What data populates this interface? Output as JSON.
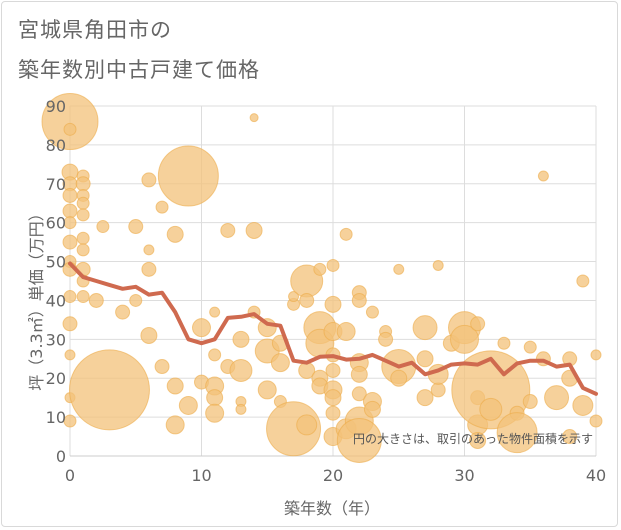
{
  "title_line1": "宮城県角田市の",
  "title_line2": "築年数別中古戸建て価格",
  "colors": {
    "bubble_fill": "#f3c27a",
    "bubble_stroke": "#ecac4a",
    "line": "#cf6a4f",
    "grid": "#dddddd",
    "text": "#666666"
  },
  "chart_data": {
    "type": "scatter",
    "xlabel": "築年数（年）",
    "ylabel": "坪（3.3㎡）単価（万円）",
    "xlim": [
      0,
      40
    ],
    "ylim": [
      0,
      90
    ],
    "x_ticks": [
      "0",
      "10",
      "20",
      "30",
      "40"
    ],
    "y_ticks": [
      "0",
      "10",
      "20",
      "30",
      "40",
      "50",
      "60",
      "70",
      "80",
      "90"
    ],
    "grid": true,
    "note": "円の大きさは、取引のあった物件面積を示す",
    "bubbles": [
      [
        0,
        86,
        28
      ],
      [
        0,
        84,
        6
      ],
      [
        0,
        73,
        8
      ],
      [
        0,
        70,
        7
      ],
      [
        0,
        67,
        7
      ],
      [
        0,
        63,
        7
      ],
      [
        0,
        60,
        6
      ],
      [
        0,
        55,
        7
      ],
      [
        0,
        50,
        6
      ],
      [
        0,
        48,
        7
      ],
      [
        0,
        41,
        6
      ],
      [
        0,
        34,
        7
      ],
      [
        0,
        9,
        6
      ],
      [
        0,
        15,
        5
      ],
      [
        0,
        26,
        5
      ],
      [
        1,
        72,
        6
      ],
      [
        1,
        70,
        7
      ],
      [
        1,
        67,
        6
      ],
      [
        1,
        65,
        6
      ],
      [
        1,
        62,
        6
      ],
      [
        1,
        56,
        6
      ],
      [
        1,
        53,
        6
      ],
      [
        1,
        48,
        7
      ],
      [
        1,
        45,
        6
      ],
      [
        1,
        41,
        6
      ],
      [
        2,
        40,
        7
      ],
      [
        2.5,
        59,
        6
      ],
      [
        3,
        17,
        40
      ],
      [
        4,
        37,
        7
      ],
      [
        5,
        59,
        7
      ],
      [
        5,
        40,
        6
      ],
      [
        6,
        71,
        7
      ],
      [
        6,
        53,
        5
      ],
      [
        6,
        48,
        7
      ],
      [
        6,
        31,
        8
      ],
      [
        7,
        64,
        6
      ],
      [
        7,
        23,
        7
      ],
      [
        8,
        57,
        8
      ],
      [
        8,
        18,
        8
      ],
      [
        8,
        8,
        9
      ],
      [
        9,
        72,
        30
      ],
      [
        9,
        13,
        9
      ],
      [
        10,
        33,
        9
      ],
      [
        10,
        19,
        7
      ],
      [
        11,
        37,
        5
      ],
      [
        11,
        26,
        6
      ],
      [
        11,
        18,
        9
      ],
      [
        11,
        15,
        8
      ],
      [
        11,
        11,
        9
      ],
      [
        12,
        58,
        7
      ],
      [
        12,
        23,
        7
      ],
      [
        13,
        30,
        8
      ],
      [
        13,
        22,
        11
      ],
      [
        13,
        14,
        5
      ],
      [
        13,
        12,
        5
      ],
      [
        14,
        87,
        4
      ],
      [
        14,
        58,
        8
      ],
      [
        14,
        37,
        6
      ],
      [
        15,
        33,
        9
      ],
      [
        15,
        27,
        12
      ],
      [
        15,
        17,
        9
      ],
      [
        16,
        29,
        8
      ],
      [
        16,
        24,
        9
      ],
      [
        16,
        14,
        6
      ],
      [
        17,
        7,
        27
      ],
      [
        17,
        39,
        6
      ],
      [
        17,
        41,
        5
      ],
      [
        18,
        45,
        16
      ],
      [
        18,
        40,
        7
      ],
      [
        18,
        22,
        8
      ],
      [
        18,
        8,
        10
      ],
      [
        19,
        48,
        6
      ],
      [
        19,
        33,
        16
      ],
      [
        19,
        29,
        14
      ],
      [
        19,
        20,
        8
      ],
      [
        19,
        18,
        8
      ],
      [
        20,
        49,
        6
      ],
      [
        20,
        39,
        8
      ],
      [
        20,
        32,
        9
      ],
      [
        20,
        26,
        7
      ],
      [
        20,
        22,
        7
      ],
      [
        20,
        17,
        9
      ],
      [
        20,
        15,
        8
      ],
      [
        20,
        11,
        7
      ],
      [
        20,
        5,
        9
      ],
      [
        21,
        57,
        6
      ],
      [
        21,
        32,
        9
      ],
      [
        21,
        7,
        10
      ],
      [
        22,
        42,
        7
      ],
      [
        22,
        40,
        7
      ],
      [
        22,
        24,
        9
      ],
      [
        22,
        21,
        8
      ],
      [
        22,
        16,
        7
      ],
      [
        22,
        9,
        14
      ],
      [
        22,
        4,
        22
      ],
      [
        23,
        37,
        6
      ],
      [
        23,
        14,
        9
      ],
      [
        23,
        12,
        8
      ],
      [
        24,
        32,
        6
      ],
      [
        24,
        30,
        7
      ],
      [
        25,
        48,
        5
      ],
      [
        25,
        23,
        17
      ],
      [
        25,
        20,
        8
      ],
      [
        27,
        33,
        12
      ],
      [
        27,
        25,
        8
      ],
      [
        27,
        15,
        8
      ],
      [
        28,
        49,
        5
      ],
      [
        28,
        17,
        7
      ],
      [
        28,
        21,
        10
      ],
      [
        29,
        29,
        8
      ],
      [
        30,
        33,
        16
      ],
      [
        30,
        30,
        14
      ],
      [
        31,
        34,
        7
      ],
      [
        31,
        15,
        7
      ],
      [
        31,
        8,
        10
      ],
      [
        31,
        4,
        8
      ],
      [
        32,
        17,
        39
      ],
      [
        32,
        12,
        11
      ],
      [
        33,
        29,
        6
      ],
      [
        34,
        11,
        7
      ],
      [
        34,
        6,
        20
      ],
      [
        35,
        28,
        6
      ],
      [
        35,
        14,
        7
      ],
      [
        36,
        72,
        5
      ],
      [
        36,
        25,
        7
      ],
      [
        37,
        15,
        12
      ],
      [
        38,
        25,
        7
      ],
      [
        38,
        20,
        8
      ],
      [
        38,
        5,
        7
      ],
      [
        39,
        45,
        6
      ],
      [
        39,
        13,
        10
      ],
      [
        40,
        26,
        5
      ],
      [
        40,
        9,
        6
      ]
    ],
    "line": [
      [
        0,
        49.5
      ],
      [
        1,
        46
      ],
      [
        2,
        45
      ],
      [
        3,
        44
      ],
      [
        4,
        43
      ],
      [
        5,
        43.5
      ],
      [
        6,
        41.5
      ],
      [
        7,
        42
      ],
      [
        8,
        37
      ],
      [
        9,
        30
      ],
      [
        10,
        29
      ],
      [
        11,
        30
      ],
      [
        12,
        35.5
      ],
      [
        13,
        35.8
      ],
      [
        14,
        36.5
      ],
      [
        15,
        34
      ],
      [
        16,
        33.5
      ],
      [
        17,
        24.5
      ],
      [
        18,
        24
      ],
      [
        19,
        25.5
      ],
      [
        20,
        25.7
      ],
      [
        21,
        24.8
      ],
      [
        22,
        25
      ],
      [
        23,
        26
      ],
      [
        24,
        24.5
      ],
      [
        25,
        23
      ],
      [
        26,
        24
      ],
      [
        27,
        21
      ],
      [
        28,
        22
      ],
      [
        29,
        23.5
      ],
      [
        30,
        23.8
      ],
      [
        31,
        23.5
      ],
      [
        32,
        25
      ],
      [
        33,
        21
      ],
      [
        34,
        23.8
      ],
      [
        35,
        24.5
      ],
      [
        36,
        24.5
      ],
      [
        37,
        23
      ],
      [
        38,
        23.5
      ],
      [
        39,
        17.5
      ],
      [
        40,
        16
      ]
    ]
  }
}
